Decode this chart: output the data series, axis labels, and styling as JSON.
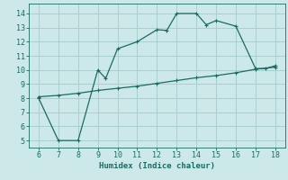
{
  "xlabel": "Humidex (Indice chaleur)",
  "bg_color": "#cce8e8",
  "grid_color": "#aacfcf",
  "line_color": "#1a6b62",
  "xlim": [
    5.5,
    18.5
  ],
  "ylim": [
    4.5,
    14.7
  ],
  "xticks": [
    6,
    7,
    8,
    9,
    10,
    11,
    12,
    13,
    14,
    15,
    16,
    17,
    18
  ],
  "yticks": [
    5,
    6,
    7,
    8,
    9,
    10,
    11,
    12,
    13,
    14
  ],
  "line1_x": [
    6,
    7,
    8,
    9,
    9.4,
    10,
    11,
    12,
    12.5,
    13,
    14,
    14.5,
    15,
    16,
    17,
    17.5,
    18
  ],
  "line1_y": [
    8.0,
    5.0,
    5.0,
    10.0,
    9.4,
    11.5,
    12.0,
    12.85,
    12.8,
    14.0,
    14.0,
    13.2,
    13.5,
    13.1,
    10.1,
    10.1,
    10.3
  ],
  "line2_x": [
    6,
    7,
    8,
    9,
    10,
    11,
    12,
    13,
    14,
    15,
    16,
    17,
    18
  ],
  "line2_y": [
    8.1,
    8.2,
    8.35,
    8.55,
    8.7,
    8.85,
    9.05,
    9.25,
    9.45,
    9.6,
    9.8,
    10.05,
    10.2
  ],
  "marker_size": 3.0,
  "line_width": 0.9,
  "font_size": 6.5,
  "tick_font_size": 6.0
}
